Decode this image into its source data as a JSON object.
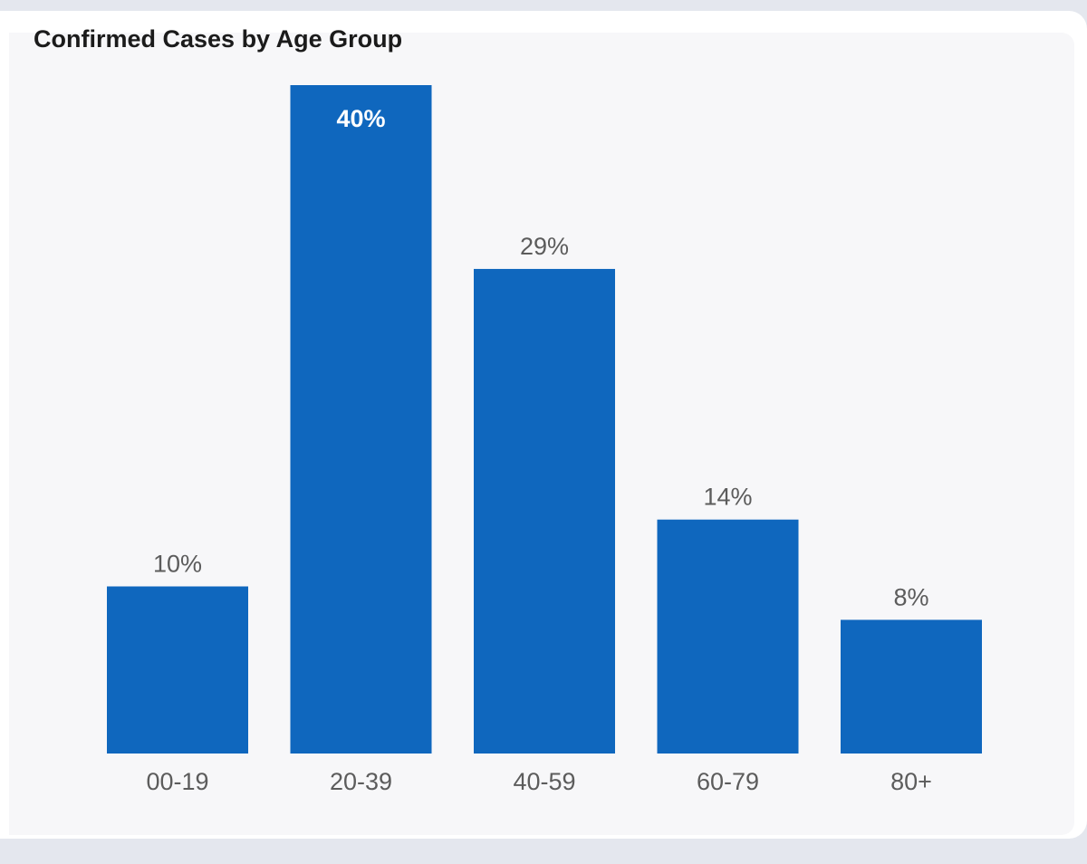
{
  "card": {
    "title": "Confirmed Cases by Age Group"
  },
  "chart_data": {
    "type": "bar",
    "title": "Confirmed Cases by Age Group",
    "categories": [
      "00-19",
      "20-39",
      "40-59",
      "60-79",
      "80+"
    ],
    "values": [
      10,
      40,
      29,
      14,
      8
    ],
    "data_labels": [
      "10%",
      "40%",
      "29%",
      "14%",
      "8%"
    ],
    "unit": "%",
    "ylim": [
      0,
      40
    ],
    "grid": false,
    "legend": "none",
    "bar_color": "#0f67be",
    "label_color": "#5c5c5c",
    "inside_label_color": "#ffffff"
  }
}
